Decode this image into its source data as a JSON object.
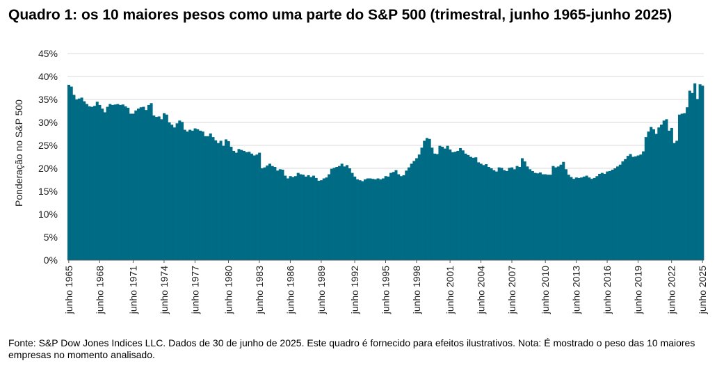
{
  "title": "Quadro 1: os 10 maiores pesos como uma parte do S&P 500 (trimestral, junho 1965-junho 2025)",
  "source": "Fonte: S&P Dow Jones Indices LLC. Dados de 30 de junho de 2025. Este quadro é fornecido para efeitos ilustrativos. Nota: É mostrado o peso das 10 maiores empresas no momento analisado.",
  "colors": {
    "bar": "#006b84",
    "grid": "#d9d9d9",
    "axis": "#555555"
  },
  "chart_data": {
    "type": "bar",
    "title": "Quadro 1: os 10 maiores pesos como uma parte do S&P 500 (trimestral, junho 1965-junho 2025)",
    "xlabel": "",
    "ylabel": "Ponderação no S&P 500",
    "ylim": [
      0,
      45
    ],
    "y_unit": "%",
    "y_ticks": [
      0,
      5,
      10,
      15,
      20,
      25,
      30,
      35,
      40,
      45
    ],
    "y_tick_labels": [
      "0%",
      "5%",
      "10%",
      "15%",
      "20%",
      "25%",
      "30%",
      "35%",
      "40%",
      "45%"
    ],
    "grid": true,
    "frequency": "quarterly",
    "x_start": "junho 1965",
    "x_end": "junho 2025",
    "x_tick_labels": [
      "junho 1965",
      "junho 1968",
      "junho 1971",
      "junho 1974",
      "junho 1977",
      "junho 1980",
      "junho 1983",
      "junho 1986",
      "junho 1989",
      "junho 1992",
      "junho 1995",
      "junho 1998",
      "junho 2001",
      "junho 2004",
      "junho 2007",
      "junho 2010",
      "junho 2013",
      "junho 2016",
      "junho 2019",
      "junho 2022",
      "junho 2025"
    ],
    "values": [
      38.2,
      37.8,
      36.0,
      35.0,
      35.2,
      35.4,
      34.6,
      34.0,
      33.5,
      33.4,
      33.6,
      34.5,
      33.8,
      33.0,
      32.2,
      33.4,
      34.0,
      33.8,
      33.9,
      34.0,
      33.8,
      33.9,
      33.5,
      33.2,
      31.9,
      31.9,
      32.6,
      33.0,
      33.3,
      33.4,
      32.7,
      33.8,
      34.2,
      31.5,
      31.2,
      31.3,
      30.7,
      32.0,
      31.7,
      30.0,
      29.5,
      28.9,
      29.8,
      30.4,
      30.1,
      28.4,
      28.0,
      28.4,
      28.2,
      28.7,
      28.5,
      28.2,
      28.0,
      27.0,
      27.0,
      27.6,
      26.8,
      26.1,
      25.5,
      26.0,
      24.9,
      26.3,
      25.9,
      24.7,
      23.8,
      23.4,
      24.2,
      24.0,
      23.8,
      23.5,
      23.6,
      23.2,
      22.8,
      23.0,
      23.4,
      20.0,
      20.2,
      20.6,
      21.0,
      20.5,
      20.3,
      19.5,
      19.8,
      19.7,
      18.4,
      17.8,
      18.3,
      18.1,
      18.3,
      19.0,
      18.7,
      18.6,
      18.2,
      18.5,
      18.1,
      18.4,
      17.9,
      17.3,
      17.4,
      17.8,
      18.0,
      18.7,
      19.9,
      20.1,
      20.3,
      20.5,
      21.0,
      20.4,
      20.7,
      20.0,
      19.0,
      18.2,
      17.6,
      17.4,
      17.2,
      17.6,
      17.8,
      17.8,
      17.7,
      17.6,
      17.8,
      17.6,
      17.8,
      18.3,
      18.2,
      19.0,
      19.2,
      19.6,
      18.7,
      18.3,
      18.5,
      19.5,
      20.2,
      21.0,
      21.6,
      22.2,
      23.0,
      24.5,
      26.0,
      26.6,
      26.4,
      24.5,
      23.2,
      23.1,
      24.9,
      24.7,
      24.3,
      24.9,
      24.1,
      23.5,
      23.6,
      23.8,
      24.4,
      23.9,
      23.2,
      22.9,
      22.5,
      22.3,
      22.4,
      21.3,
      21.0,
      20.7,
      20.9,
      20.3,
      20.0,
      19.6,
      19.3,
      20.2,
      20.1,
      19.6,
      19.4,
      20.1,
      20.2,
      19.8,
      20.5,
      20.3,
      22.2,
      21.5,
      20.4,
      19.8,
      19.4,
      19.0,
      18.9,
      19.1,
      18.7,
      18.7,
      18.6,
      18.6,
      20.5,
      20.2,
      20.4,
      20.8,
      21.4,
      19.8,
      18.6,
      18.1,
      17.7,
      18.0,
      17.9,
      18.0,
      18.2,
      18.4,
      18.0,
      17.7,
      17.9,
      18.3,
      18.8,
      19.0,
      18.8,
      19.3,
      19.4,
      19.7,
      20.0,
      20.4,
      20.8,
      21.5,
      22.0,
      22.7,
      23.1,
      22.5,
      22.6,
      22.8,
      23.0,
      23.7,
      26.8,
      28.0,
      29.0,
      28.5,
      27.5,
      28.9,
      29.5,
      30.4,
      30.7,
      28.2,
      28.8,
      25.5,
      26.0,
      31.7,
      31.9,
      32.0,
      33.3,
      36.9,
      36.4,
      38.5,
      35.1,
      38.3,
      38.0
    ]
  }
}
